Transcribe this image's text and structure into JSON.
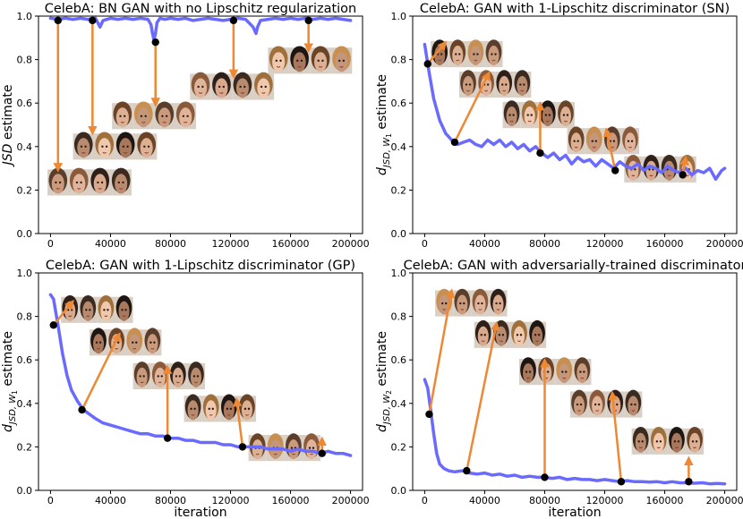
{
  "colors": {
    "curve": "#6a6aff",
    "arrow": "#ee8833",
    "marker": "#000000",
    "axis": "#000000"
  },
  "chart_data": [
    {
      "type": "line",
      "title": "CelebA: BN GAN with no Lipschitz regularization",
      "xlabel": "",
      "ylabel": "JSD estimate",
      "xlim": [
        -8000,
        208000
      ],
      "ylim": [
        0.0,
        1.0
      ],
      "xticks": [
        0,
        40000,
        80000,
        120000,
        160000,
        200000
      ],
      "yticks": [
        "0.0",
        "0.2",
        "0.4",
        "0.6",
        "0.8",
        "1.0"
      ],
      "series": [
        {
          "name": "JSD estimate",
          "x": [
            0,
            5000,
            10000,
            15000,
            20000,
            25000,
            30000,
            33000,
            35000,
            40000,
            45000,
            50000,
            55000,
            60000,
            65000,
            67000,
            68000,
            69000,
            70000,
            71000,
            73000,
            76000,
            80000,
            85000,
            90000,
            95000,
            100000,
            105000,
            110000,
            115000,
            120000,
            125000,
            130000,
            135000,
            137000,
            138000,
            140000,
            145000,
            150000,
            155000,
            160000,
            165000,
            170000,
            175000,
            180000,
            185000,
            190000,
            195000,
            200000
          ],
          "y": [
            0.99,
            0.985,
            0.99,
            0.985,
            0.99,
            0.985,
            0.99,
            0.95,
            0.98,
            0.99,
            0.985,
            0.99,
            0.985,
            0.99,
            0.985,
            0.96,
            0.92,
            0.89,
            0.92,
            0.97,
            0.99,
            0.985,
            0.99,
            0.985,
            0.99,
            0.98,
            0.985,
            0.99,
            0.985,
            0.98,
            0.985,
            0.99,
            0.985,
            0.95,
            0.92,
            0.95,
            0.98,
            0.985,
            0.99,
            0.985,
            0.99,
            0.985,
            0.99,
            0.985,
            0.99,
            0.985,
            0.99,
            0.985,
            0.98
          ]
        }
      ],
      "markers": [
        {
          "x": 5000,
          "y": 0.98,
          "tx": 5000,
          "ty": 0.29
        },
        {
          "x": 28000,
          "y": 0.98,
          "tx": 28000,
          "ty": 0.46
        },
        {
          "x": 70000,
          "y": 0.88,
          "tx": 70000,
          "ty": 0.59
        },
        {
          "x": 122000,
          "y": 0.98,
          "tx": 122000,
          "ty": 0.72
        },
        {
          "x": 172000,
          "y": 0.98,
          "tx": 172000,
          "ty": 0.84
        }
      ],
      "image_rows": [
        {
          "x": -2000,
          "y": 0.295,
          "w": 14000,
          "h": 0.12,
          "n": 4
        },
        {
          "x": 15000,
          "y": 0.46,
          "w": 14000,
          "h": 0.12,
          "n": 4
        },
        {
          "x": 41000,
          "y": 0.6,
          "w": 14000,
          "h": 0.12,
          "n": 4
        },
        {
          "x": 93000,
          "y": 0.735,
          "w": 14000,
          "h": 0.12,
          "n": 4
        },
        {
          "x": 145000,
          "y": 0.855,
          "w": 14000,
          "h": 0.12,
          "n": 4
        }
      ]
    },
    {
      "type": "line",
      "title": "CelebA: GAN with 1-Lipschitz discriminator (SN)",
      "xlabel": "",
      "ylabel": "d_JSD,W1 estimate",
      "ylabel_parts": {
        "main": "d",
        "sub": "JSD, W",
        "subsub": "1",
        "rest": " estimate"
      },
      "xlim": [
        -8000,
        208000
      ],
      "ylim": [
        0.0,
        1.0
      ],
      "xticks": [
        0,
        40000,
        80000,
        120000,
        160000,
        200000
      ],
      "yticks": [
        "0.0",
        "0.2",
        "0.4",
        "0.6",
        "0.8",
        "1.0"
      ],
      "series": [
        {
          "name": "estimate",
          "x": [
            0,
            3000,
            6000,
            10000,
            14000,
            18000,
            22000,
            26000,
            30000,
            34000,
            38000,
            42000,
            46000,
            50000,
            54000,
            58000,
            62000,
            66000,
            70000,
            74000,
            78000,
            82000,
            86000,
            90000,
            94000,
            98000,
            102000,
            106000,
            110000,
            114000,
            118000,
            122000,
            126000,
            130000,
            134000,
            138000,
            142000,
            146000,
            150000,
            154000,
            158000,
            162000,
            166000,
            170000,
            174000,
            178000,
            182000,
            186000,
            190000,
            194000,
            198000,
            200000
          ],
          "y": [
            0.87,
            0.74,
            0.62,
            0.52,
            0.46,
            0.43,
            0.41,
            0.42,
            0.43,
            0.41,
            0.4,
            0.43,
            0.41,
            0.43,
            0.4,
            0.42,
            0.39,
            0.41,
            0.38,
            0.4,
            0.37,
            0.35,
            0.37,
            0.34,
            0.36,
            0.32,
            0.35,
            0.33,
            0.34,
            0.31,
            0.34,
            0.32,
            0.3,
            0.33,
            0.31,
            0.3,
            0.32,
            0.29,
            0.31,
            0.3,
            0.28,
            0.31,
            0.29,
            0.28,
            0.3,
            0.27,
            0.29,
            0.28,
            0.3,
            0.25,
            0.29,
            0.3
          ]
        }
      ],
      "markers": [
        {
          "x": 2000,
          "y": 0.78,
          "tx": 14000,
          "ty": 0.88
        },
        {
          "x": 20000,
          "y": 0.42,
          "tx": 43000,
          "ty": 0.74
        },
        {
          "x": 77000,
          "y": 0.37,
          "tx": 77000,
          "ty": 0.6
        },
        {
          "x": 127000,
          "y": 0.29,
          "tx": 121000,
          "ty": 0.48
        },
        {
          "x": 172000,
          "y": 0.27,
          "tx": 174000,
          "ty": 0.35
        }
      ],
      "image_rows": [
        {
          "x": 4000,
          "y": 0.885,
          "w": 12000,
          "h": 0.12,
          "n": 4
        },
        {
          "x": 23000,
          "y": 0.745,
          "w": 12000,
          "h": 0.12,
          "n": 4
        },
        {
          "x": 52000,
          "y": 0.605,
          "w": 12000,
          "h": 0.12,
          "n": 4
        },
        {
          "x": 95000,
          "y": 0.485,
          "w": 12000,
          "h": 0.12,
          "n": 4
        },
        {
          "x": 133000,
          "y": 0.355,
          "w": 12000,
          "h": 0.12,
          "n": 4
        }
      ]
    },
    {
      "type": "line",
      "title": "CelebA: GAN with 1-Lipschitz discriminator (GP)",
      "xlabel": "iteration",
      "ylabel": "d_JSD,W1 estimate",
      "ylabel_parts": {
        "main": "d",
        "sub": "JSD, W",
        "subsub": "1",
        "rest": " estimate"
      },
      "xlim": [
        -8000,
        208000
      ],
      "ylim": [
        0.0,
        1.0
      ],
      "xticks": [
        0,
        40000,
        80000,
        120000,
        160000,
        200000
      ],
      "yticks": [
        "0.0",
        "0.2",
        "0.4",
        "0.6",
        "0.8",
        "1.0"
      ],
      "series": [
        {
          "name": "estimate",
          "x": [
            0,
            2000,
            5000,
            8000,
            11000,
            14000,
            18000,
            22000,
            26000,
            30000,
            35000,
            40000,
            45000,
            50000,
            55000,
            60000,
            65000,
            70000,
            75000,
            80000,
            85000,
            90000,
            95000,
            100000,
            105000,
            110000,
            115000,
            120000,
            125000,
            130000,
            135000,
            140000,
            145000,
            150000,
            155000,
            160000,
            165000,
            170000,
            175000,
            180000,
            185000,
            190000,
            195000,
            200000
          ],
          "y": [
            0.9,
            0.88,
            0.76,
            0.63,
            0.53,
            0.46,
            0.41,
            0.37,
            0.35,
            0.33,
            0.31,
            0.3,
            0.29,
            0.28,
            0.27,
            0.26,
            0.26,
            0.25,
            0.25,
            0.24,
            0.24,
            0.23,
            0.23,
            0.22,
            0.22,
            0.22,
            0.21,
            0.21,
            0.2,
            0.2,
            0.2,
            0.2,
            0.19,
            0.19,
            0.19,
            0.18,
            0.19,
            0.18,
            0.18,
            0.17,
            0.18,
            0.17,
            0.17,
            0.16
          ]
        }
      ],
      "markers": [
        {
          "x": 2000,
          "y": 0.76,
          "tx": 15000,
          "ty": 0.87
        },
        {
          "x": 21000,
          "y": 0.37,
          "tx": 46000,
          "ty": 0.72
        },
        {
          "x": 78000,
          "y": 0.24,
          "tx": 78000,
          "ty": 0.57
        },
        {
          "x": 128000,
          "y": 0.2,
          "tx": 124000,
          "ty": 0.42
        },
        {
          "x": 181000,
          "y": 0.17,
          "tx": 181000,
          "ty": 0.24
        }
      ],
      "image_rows": [
        {
          "x": 7000,
          "y": 0.89,
          "w": 12000,
          "h": 0.12,
          "n": 4
        },
        {
          "x": 26000,
          "y": 0.74,
          "w": 12000,
          "h": 0.12,
          "n": 4
        },
        {
          "x": 55000,
          "y": 0.585,
          "w": 12000,
          "h": 0.12,
          "n": 4
        },
        {
          "x": 89000,
          "y": 0.435,
          "w": 12000,
          "h": 0.12,
          "n": 4
        },
        {
          "x": 132000,
          "y": 0.255,
          "w": 12000,
          "h": 0.12,
          "n": 4
        }
      ]
    },
    {
      "type": "line",
      "title": "CelebA: GAN with adversarially-trained discriminator",
      "xlabel": "iteration",
      "ylabel": "d_JSD,W2 estimate",
      "ylabel_parts": {
        "main": "d",
        "sub": "JSD, W",
        "subsub": "2",
        "rest": " estimate"
      },
      "xlim": [
        -8000,
        208000
      ],
      "ylim": [
        0.0,
        1.0
      ],
      "xticks": [
        0,
        40000,
        80000,
        120000,
        160000,
        200000
      ],
      "yticks": [
        "0.0",
        "0.2",
        "0.4",
        "0.6",
        "0.8",
        "1.0"
      ],
      "series": [
        {
          "name": "estimate",
          "x": [
            0,
            2000,
            4000,
            6000,
            8000,
            10000,
            13000,
            16000,
            20000,
            25000,
            30000,
            35000,
            40000,
            45000,
            50000,
            55000,
            60000,
            65000,
            70000,
            75000,
            80000,
            85000,
            90000,
            95000,
            100000,
            105000,
            110000,
            115000,
            120000,
            125000,
            130000,
            135000,
            140000,
            145000,
            150000,
            155000,
            160000,
            165000,
            170000,
            175000,
            180000,
            185000,
            190000,
            195000,
            200000
          ],
          "y": [
            0.51,
            0.47,
            0.37,
            0.26,
            0.17,
            0.12,
            0.1,
            0.09,
            0.085,
            0.09,
            0.08,
            0.075,
            0.08,
            0.07,
            0.075,
            0.065,
            0.07,
            0.06,
            0.065,
            0.06,
            0.06,
            0.055,
            0.06,
            0.05,
            0.055,
            0.05,
            0.05,
            0.045,
            0.05,
            0.045,
            0.04,
            0.045,
            0.04,
            0.04,
            0.038,
            0.04,
            0.035,
            0.04,
            0.035,
            0.035,
            0.033,
            0.035,
            0.03,
            0.032,
            0.03
          ]
        }
      ],
      "markers": [
        {
          "x": 3000,
          "y": 0.35,
          "tx": 18000,
          "ty": 0.92
        },
        {
          "x": 28000,
          "y": 0.09,
          "tx": 48000,
          "ty": 0.77
        },
        {
          "x": 80000,
          "y": 0.06,
          "tx": 80000,
          "ty": 0.6
        },
        {
          "x": 131000,
          "y": 0.04,
          "tx": 125000,
          "ty": 0.45
        },
        {
          "x": 176000,
          "y": 0.04,
          "tx": 176000,
          "ty": 0.15
        }
      ],
      "image_rows": [
        {
          "x": 7000,
          "y": 0.92,
          "w": 12000,
          "h": 0.12,
          "n": 4
        },
        {
          "x": 33000,
          "y": 0.775,
          "w": 12000,
          "h": 0.12,
          "n": 4
        },
        {
          "x": 63000,
          "y": 0.605,
          "w": 12000,
          "h": 0.12,
          "n": 4
        },
        {
          "x": 97000,
          "y": 0.455,
          "w": 12000,
          "h": 0.12,
          "n": 4
        },
        {
          "x": 138000,
          "y": 0.285,
          "w": 12000,
          "h": 0.12,
          "n": 4
        }
      ]
    }
  ]
}
